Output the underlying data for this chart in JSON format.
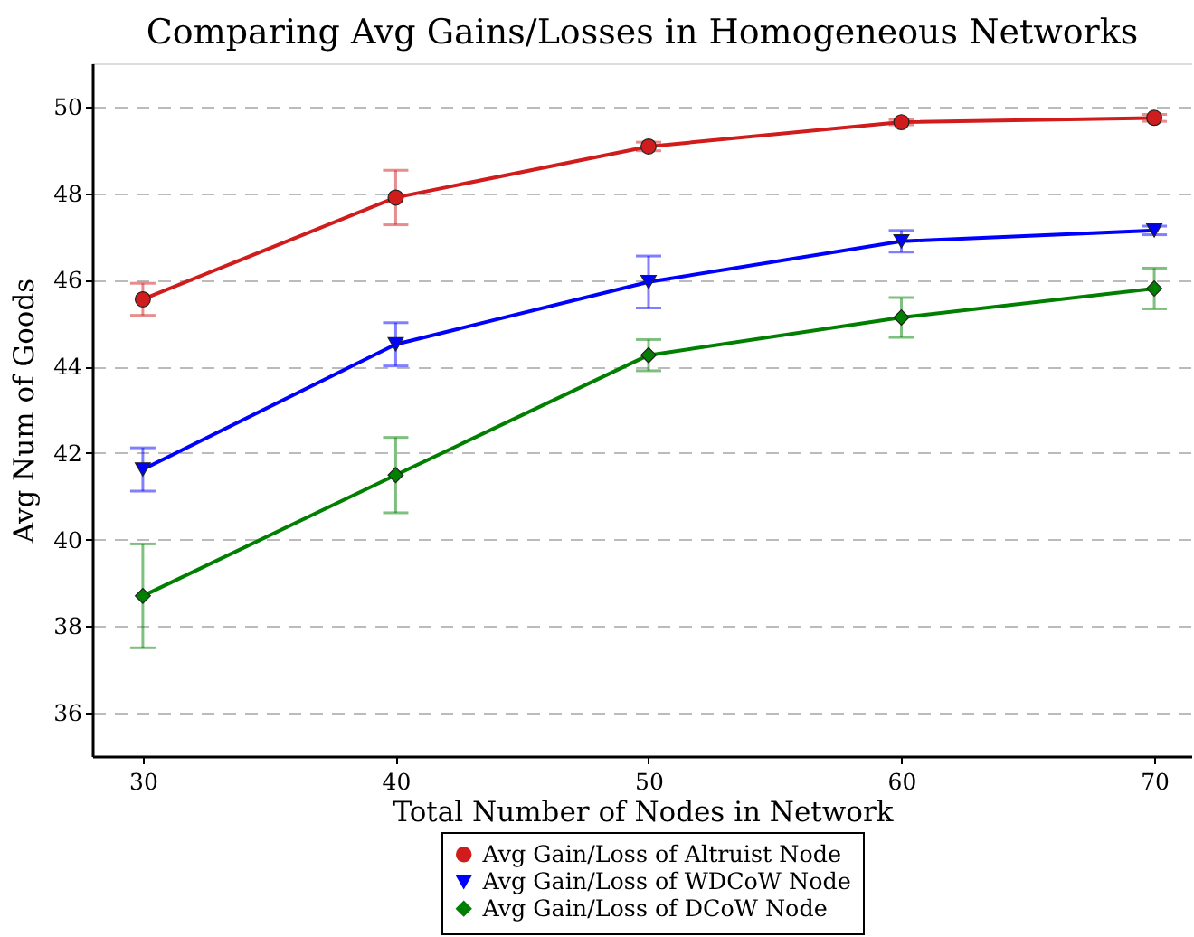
{
  "chart_data": {
    "type": "line",
    "title": "Comparing Avg Gains/Losses in Homogeneous Networks",
    "xlabel": "Total Number of Nodes in Network",
    "ylabel": "Avg Num of Goods",
    "x": [
      30,
      40,
      50,
      60,
      70
    ],
    "xlim": [
      28,
      71.5
    ],
    "ylim": [
      35,
      51
    ],
    "xticks": [
      30,
      40,
      50,
      60,
      70
    ],
    "yticks": [
      36,
      38,
      40,
      42,
      44,
      46,
      48,
      50
    ],
    "grid": "y",
    "legend": "bottom",
    "line_style": "solid",
    "series": [
      {
        "name": "Avg Gain/Loss of Altruist Node",
        "color": "#d01c1c",
        "marker": "circle",
        "values": [
          45.55,
          47.9,
          49.08,
          49.64,
          49.74
        ],
        "errors": [
          0.37,
          0.63,
          0.1,
          0.06,
          0.08
        ]
      },
      {
        "name": "Avg Gain/Loss of WDCoW Node",
        "color": "#0000ff",
        "marker": "triangle",
        "values": [
          41.62,
          44.51,
          45.95,
          46.89,
          47.14
        ],
        "errors": [
          0.5,
          0.5,
          0.6,
          0.25,
          0.1
        ]
      },
      {
        "name": "Avg Gain/Loss of DCoW Node",
        "color": "#007f00",
        "marker": "diamond",
        "values": [
          38.7,
          41.49,
          44.26,
          45.13,
          45.8
        ],
        "errors": [
          1.2,
          0.87,
          0.36,
          0.46,
          0.47
        ]
      }
    ]
  }
}
